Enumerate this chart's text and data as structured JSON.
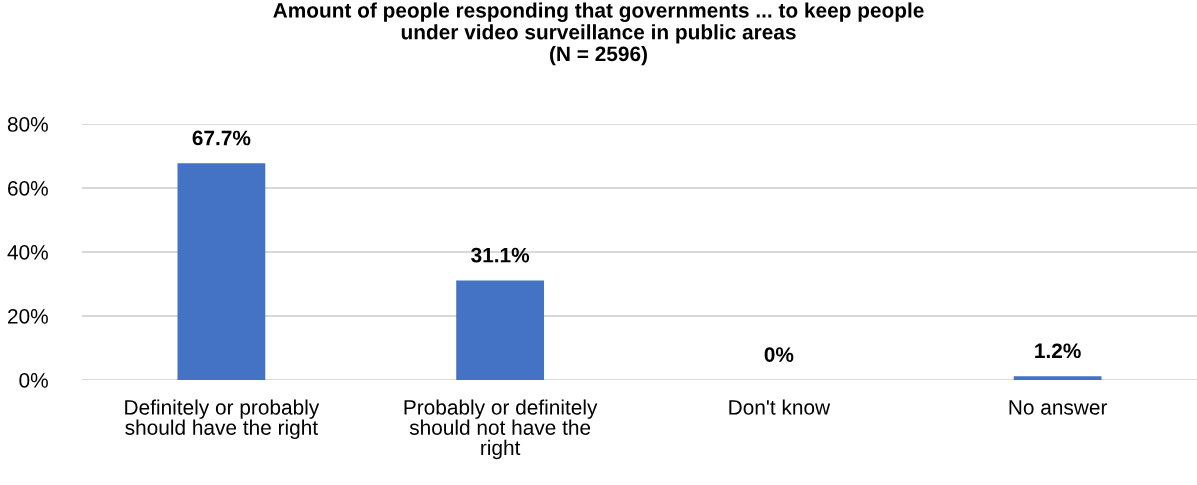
{
  "chart_data": {
    "type": "bar",
    "title": "Amount of people responding that governments ... to keep people\nunder video surveillance in public areas\n(N = 2596)",
    "categories": [
      "Definitely or probably\nshould have the right",
      "Probably or definitely\nshould not have the\nright",
      "Don't know",
      "No answer"
    ],
    "values": [
      67.7,
      31.1,
      0,
      1.2
    ],
    "value_labels": [
      "67.7%",
      "31.1%",
      "0%",
      "1.2%"
    ],
    "color": "#4472c4",
    "ylim": [
      0,
      80
    ],
    "yticks": [
      {
        "value": 0,
        "label": "0%"
      },
      {
        "value": 20,
        "label": "20%"
      },
      {
        "value": 40,
        "label": "40%"
      },
      {
        "value": 60,
        "label": "60%"
      },
      {
        "value": 80,
        "label": "80%"
      }
    ],
    "grid": "y",
    "legend": false
  }
}
